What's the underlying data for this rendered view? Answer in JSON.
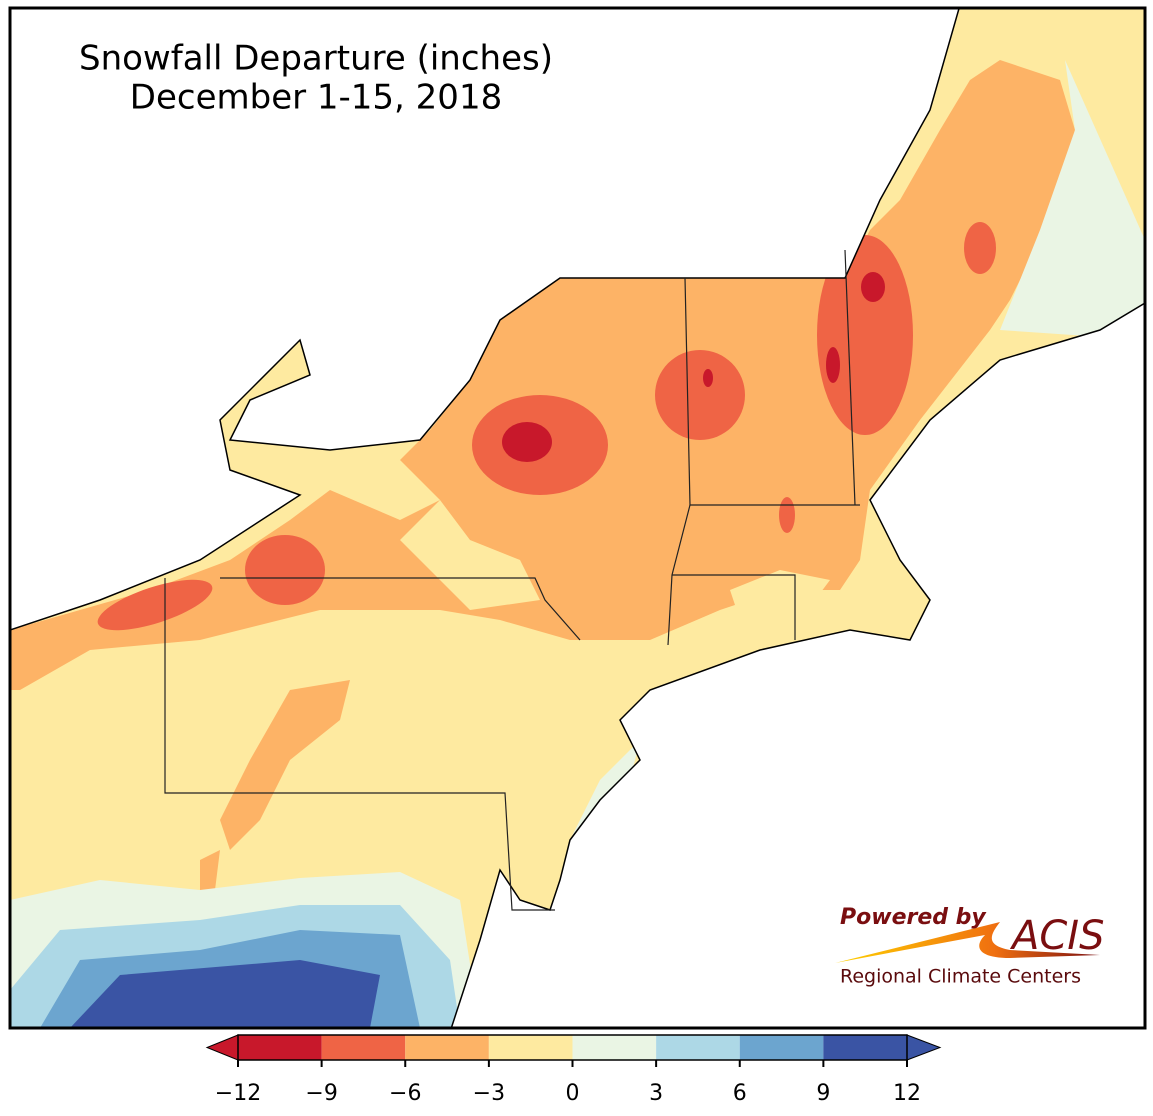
{
  "title": "Snowfall Departure (inches)",
  "subtitle": "December 1-15, 2018",
  "colorbar": {
    "ticks": [
      {
        "value": -12,
        "label": "−12"
      },
      {
        "value": -9,
        "label": "−9"
      },
      {
        "value": -6,
        "label": "−6"
      },
      {
        "value": -3,
        "label": "−3"
      },
      0,
      3,
      6,
      9,
      12
    ],
    "colors": [
      "#c8182b",
      "#ef6445",
      "#fdb366",
      "#feeaa0",
      "#eaf5e4",
      "#add8e6",
      "#6ca5cf",
      "#3a54a4"
    ]
  },
  "logo": {
    "tagline": "Powered by",
    "name": "ACIS",
    "caption": "Regional Climate Centers"
  }
}
